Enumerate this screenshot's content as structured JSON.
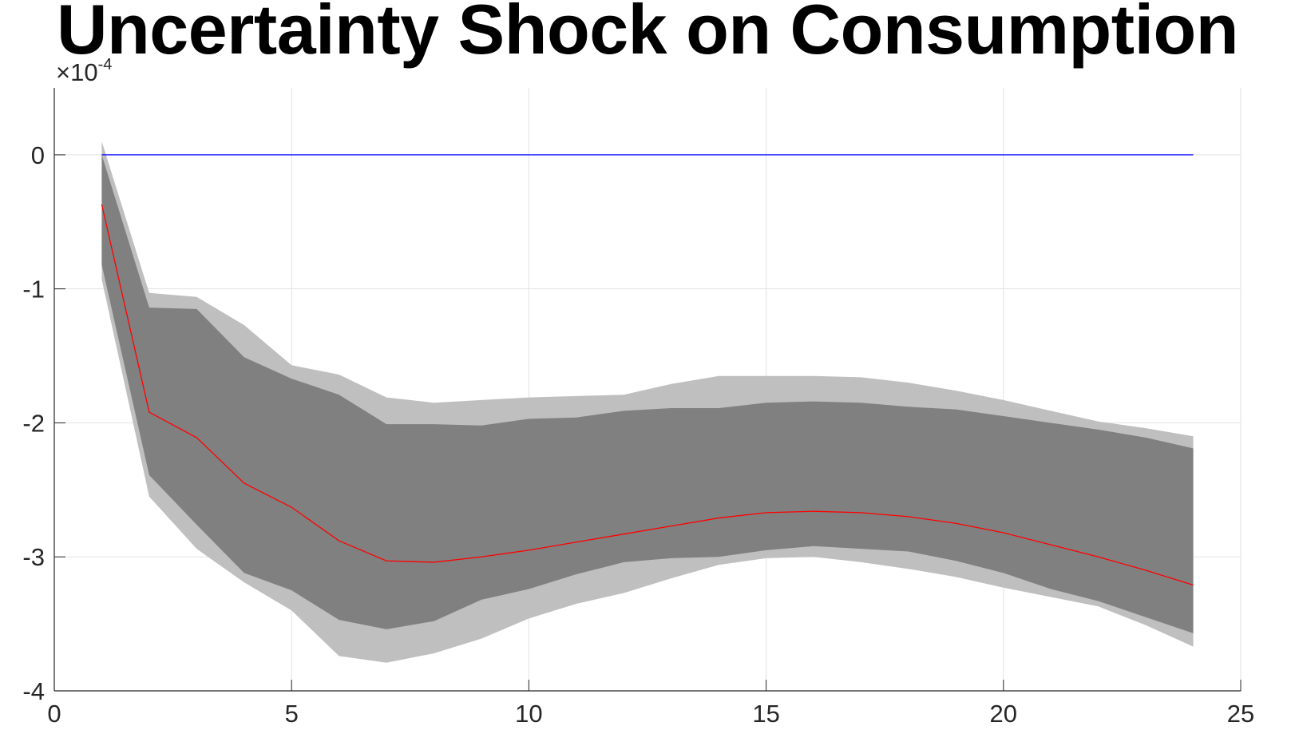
{
  "chart_data": {
    "type": "area",
    "title": "Uncertainty Shock on Consumption",
    "xlabel": "",
    "ylabel": "",
    "axis_exponent": "×10-4",
    "xlim": [
      0,
      25
    ],
    "ylim": [
      -4,
      0.5
    ],
    "xticks": [
      0,
      5,
      10,
      15,
      20,
      25
    ],
    "yticks": [
      0,
      -1,
      -2,
      -3,
      -4
    ],
    "grid": true,
    "x": [
      1,
      2,
      3,
      4,
      5,
      6,
      7,
      8,
      9,
      10,
      11,
      12,
      13,
      14,
      15,
      16,
      17,
      18,
      19,
      20,
      21,
      22,
      23,
      24
    ],
    "series": [
      {
        "role": "outer-band-upper",
        "color": "#bfbfbf",
        "values": [
          0.1,
          -1.03,
          -1.06,
          -1.27,
          -1.57,
          -1.64,
          -1.81,
          -1.85,
          -1.83,
          -1.81,
          -1.8,
          -1.79,
          -1.71,
          -1.65,
          -1.65,
          -1.65,
          -1.66,
          -1.7,
          -1.76,
          -1.83,
          -1.91,
          -1.99,
          -2.04,
          -2.1
        ]
      },
      {
        "role": "outer-band-lower",
        "color": "#bfbfbf",
        "values": [
          -0.93,
          -2.55,
          -2.94,
          -3.19,
          -3.4,
          -3.74,
          -3.79,
          -3.72,
          -3.61,
          -3.46,
          -3.35,
          -3.27,
          -3.16,
          -3.06,
          -3.01,
          -3.0,
          -3.04,
          -3.09,
          -3.15,
          -3.23,
          -3.3,
          -3.37,
          -3.51,
          -3.67
        ]
      },
      {
        "role": "inner-band-upper",
        "color": "#808080",
        "values": [
          0.0,
          -1.14,
          -1.15,
          -1.51,
          -1.67,
          -1.79,
          -2.01,
          -2.01,
          -2.02,
          -1.97,
          -1.96,
          -1.91,
          -1.89,
          -1.89,
          -1.85,
          -1.84,
          -1.85,
          -1.88,
          -1.9,
          -1.95,
          -2.0,
          -2.05,
          -2.11,
          -2.19
        ]
      },
      {
        "role": "inner-band-lower",
        "color": "#808080",
        "values": [
          -0.82,
          -2.39,
          -2.76,
          -3.12,
          -3.25,
          -3.47,
          -3.54,
          -3.48,
          -3.32,
          -3.24,
          -3.13,
          -3.04,
          -3.01,
          -3.0,
          -2.95,
          -2.92,
          -2.94,
          -2.96,
          -3.03,
          -3.12,
          -3.24,
          -3.33,
          -3.45,
          -3.57
        ]
      },
      {
        "role": "median",
        "color": "#ff0000",
        "values": [
          -0.37,
          -1.92,
          -2.11,
          -2.45,
          -2.63,
          -2.88,
          -3.03,
          -3.04,
          -3.0,
          -2.95,
          -2.89,
          -2.83,
          -2.77,
          -2.71,
          -2.67,
          -2.66,
          -2.67,
          -2.7,
          -2.75,
          -2.82,
          -2.91,
          -3.0,
          -3.1,
          -3.21
        ]
      },
      {
        "role": "zero-line",
        "color": "#0000ff",
        "values": [
          0,
          0,
          0,
          0,
          0,
          0,
          0,
          0,
          0,
          0,
          0,
          0,
          0,
          0,
          0,
          0,
          0,
          0,
          0,
          0,
          0,
          0,
          0,
          0
        ]
      }
    ]
  }
}
